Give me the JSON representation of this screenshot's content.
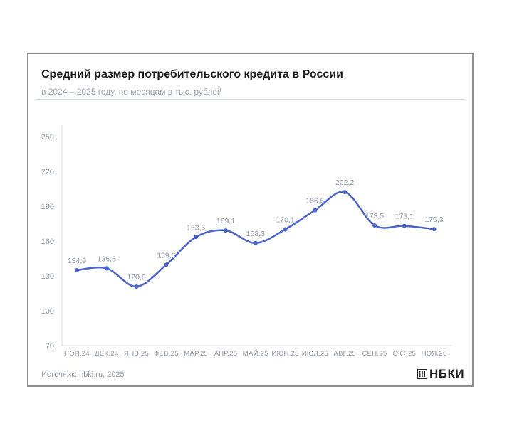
{
  "header": {
    "title": "Средний размер потребительского кредита в России",
    "subtitle": "в 2024 – 2025 году, по месяцам в тыс. рублей"
  },
  "footer": {
    "source": "Источник: nbki.ru, 2025",
    "logo_text": "НБКИ",
    "logo_icon": "nbki-logo-icon"
  },
  "colors": {
    "line": "#4c63cc",
    "label": "#8a94a6",
    "axis": "#d4dae3"
  },
  "chart_data": {
    "type": "line",
    "title": "Средний размер потребительского кредита в России",
    "subtitle": "в 2024 – 2025 году, по месяцам в тыс. рублей",
    "categories": [
      "НОЯ.24",
      "ДЕК.24",
      "ЯНВ.25",
      "ФЕВ.25",
      "МАР.25",
      "АПР.25",
      "МАЙ.25",
      "ИЮН.25",
      "ИЮЛ.25",
      "АВГ.25",
      "СЕН.25",
      "ОКТ.25",
      "НОЯ.25"
    ],
    "series": [
      {
        "values": [
          134.9,
          136.5,
          120.8,
          139.6,
          163.5,
          169.1,
          158.3,
          170.1,
          186.5,
          202.2,
          173.5,
          173.1,
          170.3
        ]
      }
    ],
    "data_labels": [
      "134,9",
      "136,5",
      "120,8",
      "139,6",
      "163,5",
      "169,1",
      "158,3",
      "170,1",
      "186,5",
      "202,2",
      "173,5",
      "173,1",
      "170,3"
    ],
    "yticks": [
      70,
      100,
      130,
      160,
      190,
      220,
      250
    ],
    "ylim": [
      70,
      250
    ],
    "grid": false,
    "legend": "none"
  }
}
